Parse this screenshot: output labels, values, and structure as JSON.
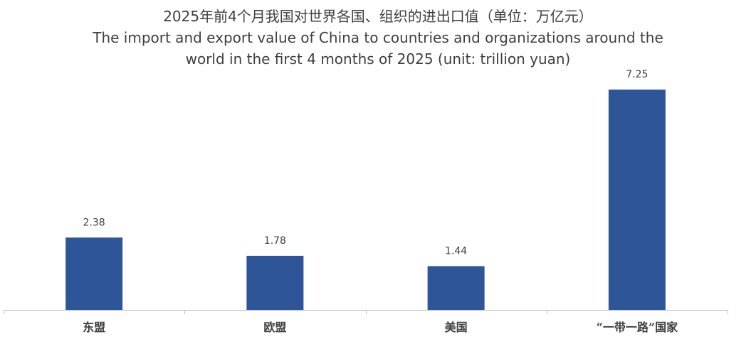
{
  "title_zh": "2025年前4个月我国对世界各国、组织的进出口值（单位：万亿元）",
  "title_en_line1": "The import and export value of China to countries and organizations around the",
  "title_en_line2": "world in the first 4 months of 2025 (unit: trillion yuan)",
  "colors": {
    "bar": "#2E5597",
    "axis": "#bfbfbf"
  },
  "chart_data": {
    "type": "bar",
    "title": "2025年前4个月我国对世界各国、组织的进出口值（单位：万亿元） The import and export value of China to countries and organizations around the world in the first 4 months of 2025 (unit: trillion yuan)",
    "categories": [
      "东盟",
      "欧盟",
      "美国",
      "“一带一路”国家"
    ],
    "values": [
      2.38,
      1.78,
      1.44,
      7.25
    ],
    "value_labels": [
      "2.38",
      "1.78",
      "1.44",
      "7.25"
    ],
    "xlabel": "",
    "ylabel": "",
    "ylim": [
      0,
      8
    ],
    "grid": false,
    "legend": "none"
  }
}
